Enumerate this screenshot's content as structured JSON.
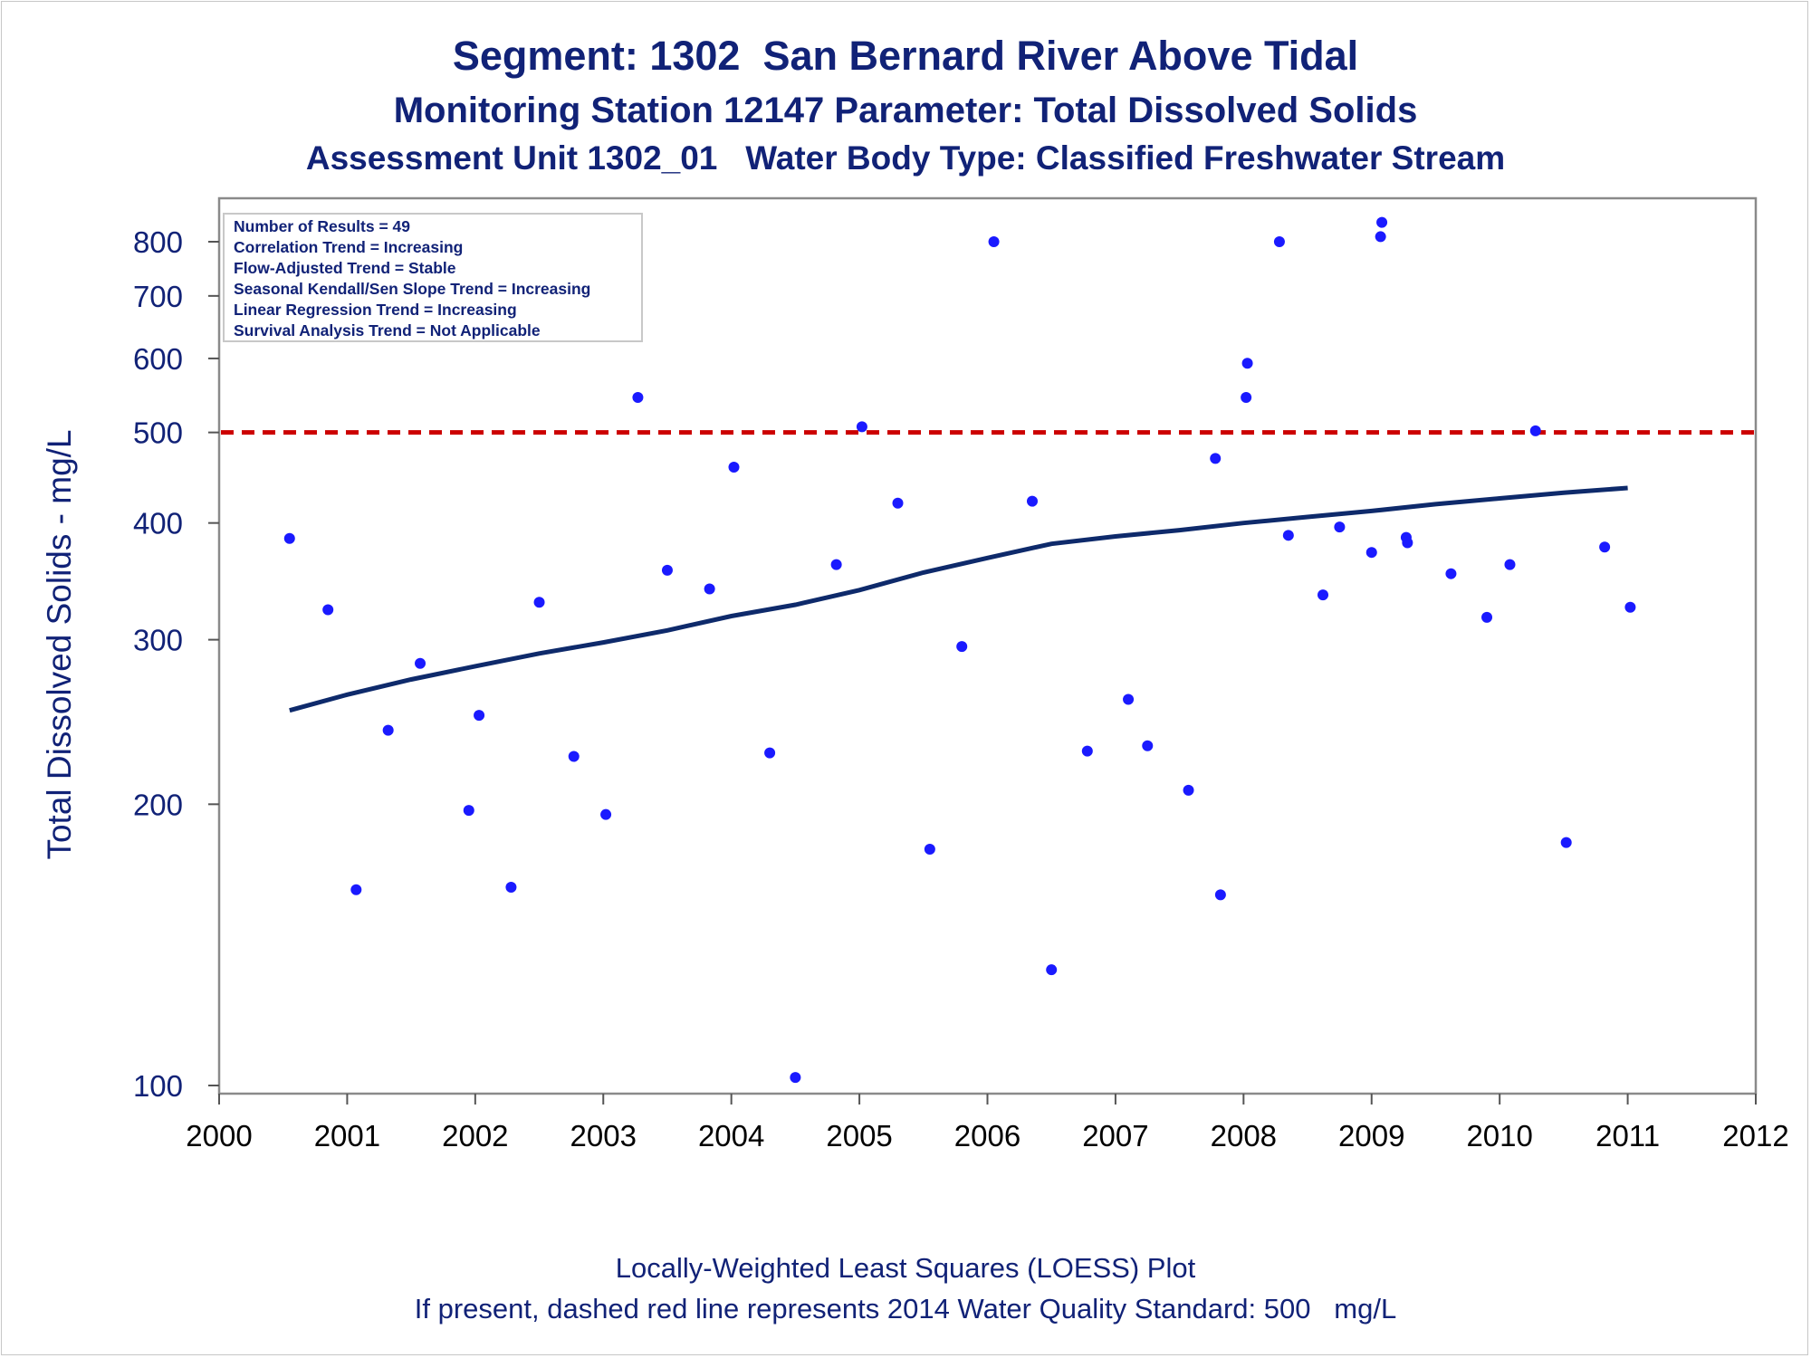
{
  "titles": {
    "line1": "Segment: 1302  San Bernard River Above Tidal",
    "line2": "Monitoring Station 12147 Parameter: Total Dissolved Solids",
    "line3": "Assessment Unit 1302_01   Water Body Type: Classified Freshwater Stream"
  },
  "footnotes": {
    "line1": "Locally-Weighted Least Squares (LOESS) Plot",
    "line2": "If present, dashed red line represents 2014 Water Quality Standard: 500   mg/L"
  },
  "stats_box": [
    "Number of Results = 49",
    "Correlation Trend = Increasing",
    "Flow-Adjusted Trend = Stable",
    "Seasonal Kendall/Sen Slope Trend = Increasing",
    "Linear Regression Trend = Increasing",
    "Survival Analysis Trend = Not Applicable"
  ],
  "colors": {
    "points": "#1a1aff",
    "loess": "#0e2a6b",
    "standard": "#cc0000",
    "text": "#112277"
  },
  "chart_data": {
    "type": "scatter",
    "ylabel": "Total Dissolved Solids - mg/L",
    "xlabel": "",
    "y_scale": "log",
    "xlim": [
      2000,
      2012
    ],
    "ylim": [
      97,
      870
    ],
    "x_ticks": [
      2000,
      2001,
      2002,
      2003,
      2004,
      2005,
      2006,
      2007,
      2008,
      2009,
      2010,
      2011,
      2012
    ],
    "y_ticks": [
      100,
      200,
      300,
      400,
      500,
      600,
      700,
      800
    ],
    "standard_line": {
      "value": 500,
      "style": "dashed"
    },
    "points": [
      {
        "x": 2000.55,
        "y": 385
      },
      {
        "x": 2000.85,
        "y": 323
      },
      {
        "x": 2001.07,
        "y": 162
      },
      {
        "x": 2001.32,
        "y": 240
      },
      {
        "x": 2001.57,
        "y": 283
      },
      {
        "x": 2001.95,
        "y": 197
      },
      {
        "x": 2002.03,
        "y": 249
      },
      {
        "x": 2002.28,
        "y": 163
      },
      {
        "x": 2002.5,
        "y": 329
      },
      {
        "x": 2002.77,
        "y": 225
      },
      {
        "x": 2003.02,
        "y": 195
      },
      {
        "x": 2003.27,
        "y": 545
      },
      {
        "x": 2003.5,
        "y": 356
      },
      {
        "x": 2003.83,
        "y": 340
      },
      {
        "x": 2004.02,
        "y": 459
      },
      {
        "x": 2004.3,
        "y": 227
      },
      {
        "x": 2004.5,
        "y": 102
      },
      {
        "x": 2004.82,
        "y": 361
      },
      {
        "x": 2005.02,
        "y": 507
      },
      {
        "x": 2005.3,
        "y": 420
      },
      {
        "x": 2005.55,
        "y": 179
      },
      {
        "x": 2005.8,
        "y": 295
      },
      {
        "x": 2006.05,
        "y": 800
      },
      {
        "x": 2006.35,
        "y": 422
      },
      {
        "x": 2006.5,
        "y": 133
      },
      {
        "x": 2006.78,
        "y": 228
      },
      {
        "x": 2007.1,
        "y": 259
      },
      {
        "x": 2007.25,
        "y": 231
      },
      {
        "x": 2007.57,
        "y": 207
      },
      {
        "x": 2007.78,
        "y": 469
      },
      {
        "x": 2007.82,
        "y": 160
      },
      {
        "x": 2008.02,
        "y": 545
      },
      {
        "x": 2008.03,
        "y": 593
      },
      {
        "x": 2008.28,
        "y": 800
      },
      {
        "x": 2008.35,
        "y": 388
      },
      {
        "x": 2008.62,
        "y": 335
      },
      {
        "x": 2008.75,
        "y": 396
      },
      {
        "x": 2009.0,
        "y": 372
      },
      {
        "x": 2009.07,
        "y": 810
      },
      {
        "x": 2009.08,
        "y": 839
      },
      {
        "x": 2009.27,
        "y": 386
      },
      {
        "x": 2009.28,
        "y": 381
      },
      {
        "x": 2009.62,
        "y": 353
      },
      {
        "x": 2009.9,
        "y": 317
      },
      {
        "x": 2010.08,
        "y": 361
      },
      {
        "x": 2010.28,
        "y": 502
      },
      {
        "x": 2010.52,
        "y": 182
      },
      {
        "x": 2010.82,
        "y": 377
      },
      {
        "x": 2011.02,
        "y": 325
      }
    ],
    "loess": [
      {
        "x": 2000.55,
        "y": 252
      },
      {
        "x": 2001.0,
        "y": 262
      },
      {
        "x": 2001.5,
        "y": 272
      },
      {
        "x": 2002.0,
        "y": 281
      },
      {
        "x": 2002.5,
        "y": 290
      },
      {
        "x": 2003.0,
        "y": 298
      },
      {
        "x": 2003.5,
        "y": 307
      },
      {
        "x": 2004.0,
        "y": 318
      },
      {
        "x": 2004.5,
        "y": 327
      },
      {
        "x": 2005.0,
        "y": 339
      },
      {
        "x": 2005.5,
        "y": 354
      },
      {
        "x": 2006.0,
        "y": 367
      },
      {
        "x": 2006.5,
        "y": 380
      },
      {
        "x": 2007.0,
        "y": 387
      },
      {
        "x": 2007.5,
        "y": 393
      },
      {
        "x": 2008.0,
        "y": 400
      },
      {
        "x": 2008.5,
        "y": 406
      },
      {
        "x": 2009.0,
        "y": 412
      },
      {
        "x": 2009.5,
        "y": 419
      },
      {
        "x": 2010.0,
        "y": 425
      },
      {
        "x": 2010.5,
        "y": 431
      },
      {
        "x": 2011.0,
        "y": 436
      }
    ]
  }
}
